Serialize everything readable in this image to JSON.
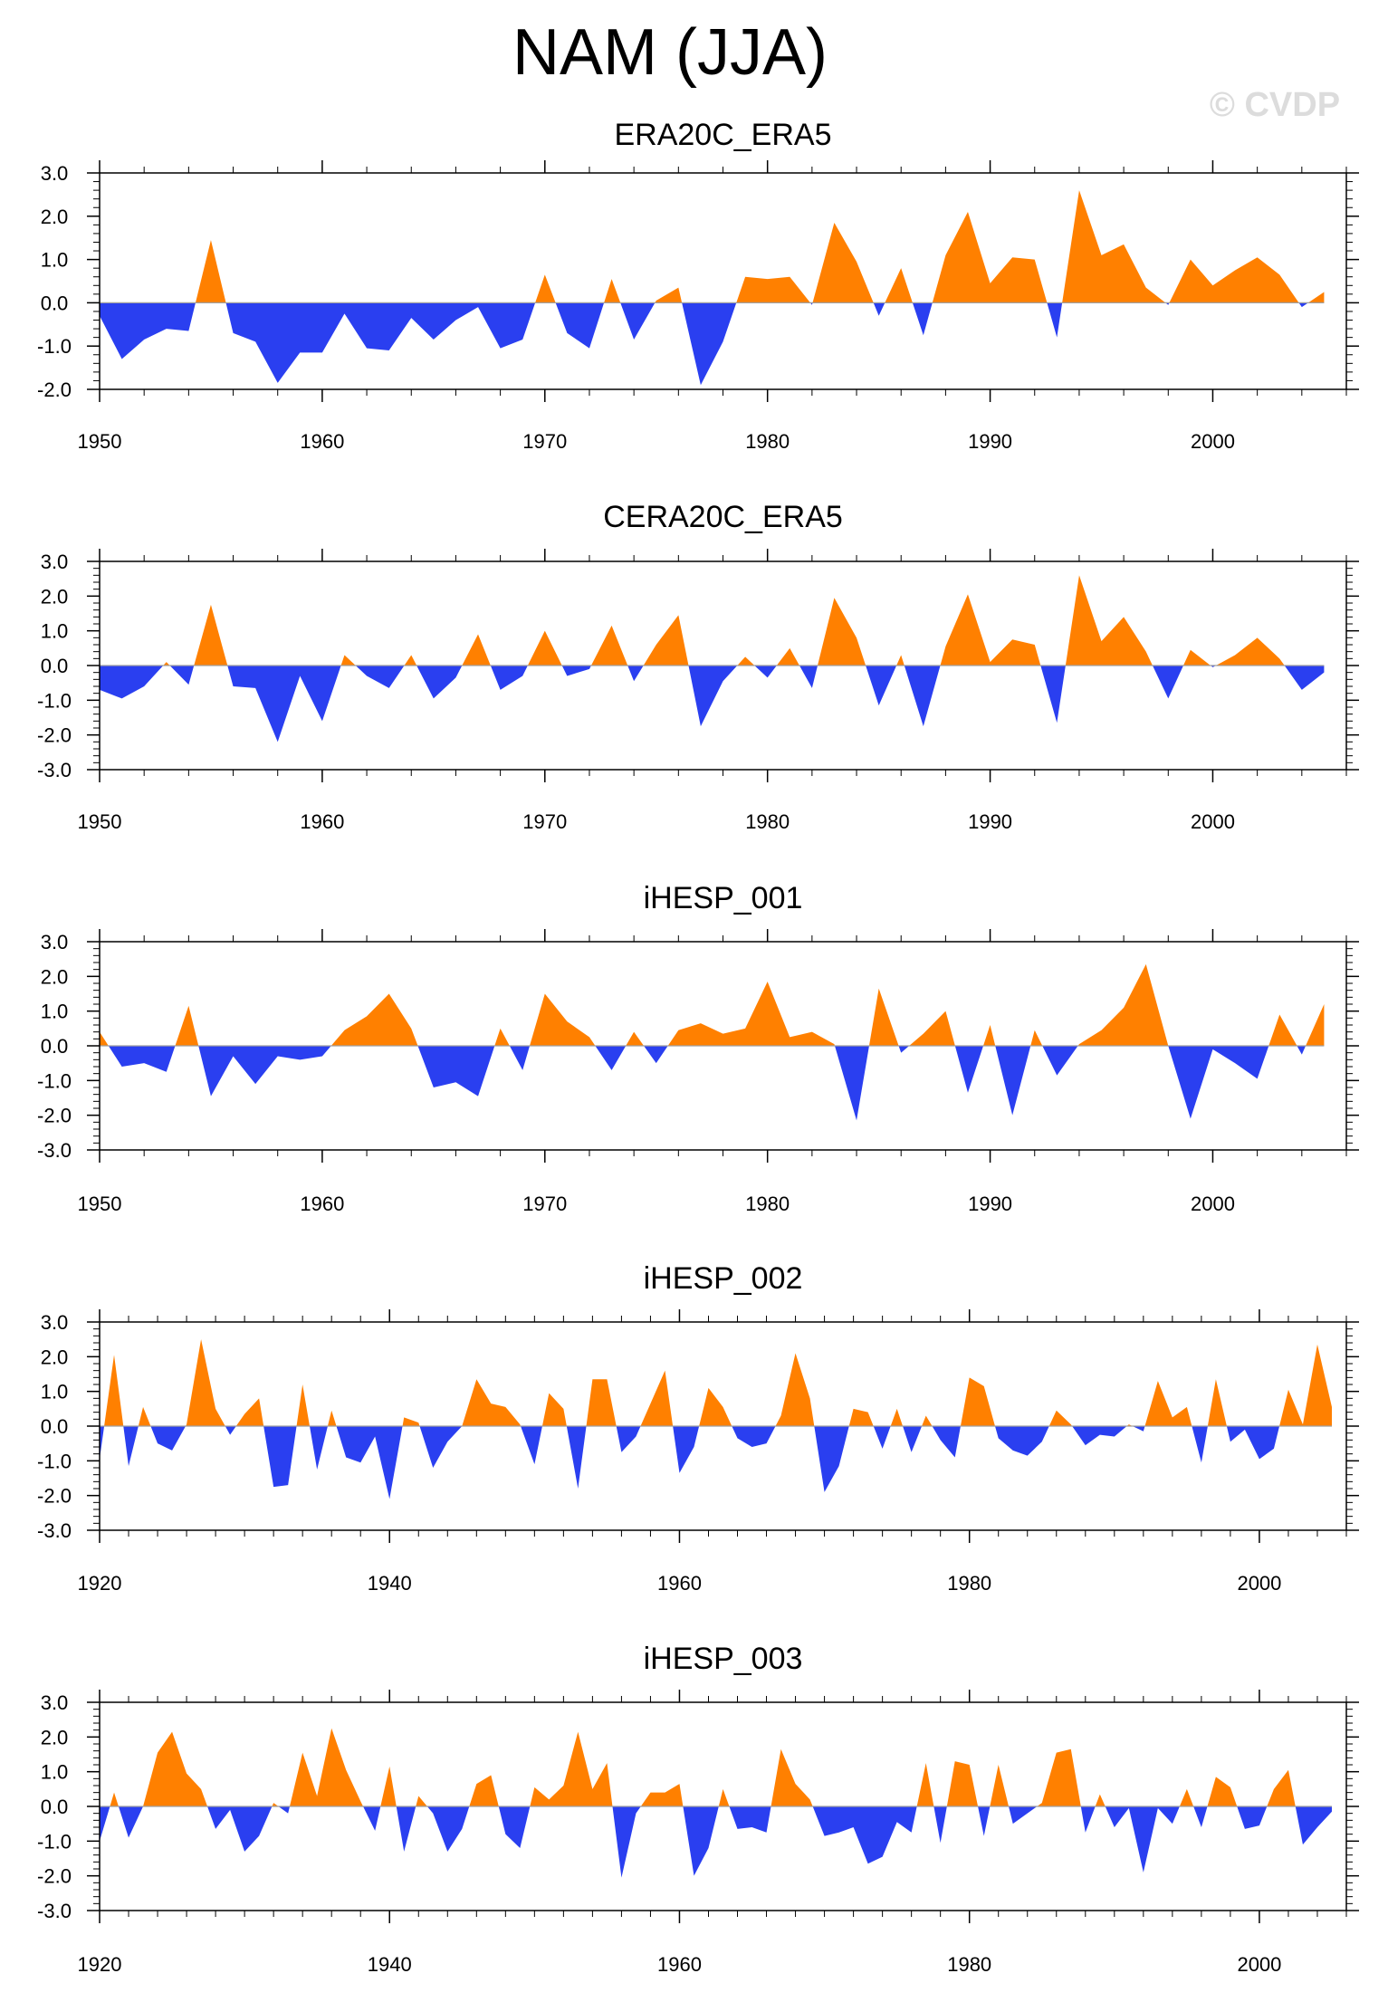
{
  "figure": {
    "title": "NAM (JJA)",
    "watermark": "© CVDP",
    "colors": {
      "positive": "#ff8000",
      "negative": "#2a3ff0",
      "axis": "#000000",
      "zero_line": "#a0a0a0"
    }
  },
  "chart_data": [
    {
      "type": "area",
      "title": "ERA20C_ERA5",
      "x_start": 1950,
      "ylim": [
        -2.0,
        3.0
      ],
      "xlim": [
        1950,
        2006
      ],
      "yticks": [
        3.0,
        2.0,
        1.0,
        0.0,
        -1.0,
        -2.0
      ],
      "ytick_labels": [
        "3.0",
        "2.0",
        "1.0",
        "0.0",
        "-1.0",
        "-2.0"
      ],
      "xticks": [
        1950,
        1960,
        1970,
        1980,
        1990,
        2000
      ],
      "xtick_labels": [
        "1950",
        "1960",
        "1970",
        "1980",
        "1990",
        "2000"
      ],
      "values": [
        -0.3,
        -1.3,
        -0.85,
        -0.6,
        -0.65,
        1.45,
        -0.7,
        -0.9,
        -1.85,
        -1.15,
        -1.15,
        -0.25,
        -1.05,
        -1.1,
        -0.35,
        -0.85,
        -0.4,
        -0.1,
        -1.05,
        -0.85,
        0.65,
        -0.7,
        -1.05,
        0.55,
        -0.85,
        0.05,
        0.35,
        -1.9,
        -0.9,
        0.6,
        0.55,
        0.6,
        -0.05,
        1.85,
        0.95,
        -0.3,
        0.8,
        -0.75,
        1.1,
        2.1,
        0.45,
        1.05,
        1.0,
        -0.8,
        2.6,
        1.1,
        1.35,
        0.35,
        -0.05,
        1.0,
        0.4,
        0.75,
        1.05,
        0.65,
        -0.1,
        0.25
      ]
    },
    {
      "type": "area",
      "title": "CERA20C_ERA5",
      "x_start": 1950,
      "ylim": [
        -3.0,
        3.0
      ],
      "xlim": [
        1950,
        2006
      ],
      "yticks": [
        3.0,
        2.0,
        1.0,
        0.0,
        -1.0,
        -2.0,
        -3.0
      ],
      "ytick_labels": [
        "3.0",
        "2.0",
        "1.0",
        "0.0",
        "-1.0",
        "-2.0",
        "-3.0"
      ],
      "xticks": [
        1950,
        1960,
        1970,
        1980,
        1990,
        2000
      ],
      "xtick_labels": [
        "1950",
        "1960",
        "1970",
        "1980",
        "1990",
        "2000"
      ],
      "values": [
        -0.7,
        -0.95,
        -0.6,
        0.1,
        -0.55,
        1.75,
        -0.6,
        -0.65,
        -2.2,
        -0.3,
        -1.6,
        0.3,
        -0.3,
        -0.65,
        0.3,
        -0.95,
        -0.35,
        0.9,
        -0.7,
        -0.3,
        1.0,
        -0.3,
        -0.1,
        1.15,
        -0.45,
        0.6,
        1.45,
        -1.75,
        -0.45,
        0.25,
        -0.35,
        0.5,
        -0.65,
        1.95,
        0.8,
        -1.15,
        0.3,
        -1.75,
        0.55,
        2.05,
        0.1,
        0.75,
        0.6,
        -1.65,
        2.6,
        0.7,
        1.4,
        0.4,
        -0.95,
        0.45,
        -0.05,
        0.3,
        0.8,
        0.2,
        -0.7,
        -0.2
      ]
    },
    {
      "type": "area",
      "title": "iHESP_001",
      "x_start": 1950,
      "ylim": [
        -3.0,
        3.0
      ],
      "xlim": [
        1950,
        2006
      ],
      "yticks": [
        3.0,
        2.0,
        1.0,
        0.0,
        -1.0,
        -2.0,
        -3.0
      ],
      "ytick_labels": [
        "3.0",
        "2.0",
        "1.0",
        "0.0",
        "-1.0",
        "-2.0",
        "-3.0"
      ],
      "xticks": [
        1950,
        1960,
        1970,
        1980,
        1990,
        2000
      ],
      "xtick_labels": [
        "1950",
        "1960",
        "1970",
        "1980",
        "1990",
        "2000"
      ],
      "values": [
        0.4,
        -0.6,
        -0.5,
        -0.75,
        1.15,
        -1.45,
        -0.3,
        -1.1,
        -0.3,
        -0.4,
        -0.3,
        0.45,
        0.85,
        1.5,
        0.5,
        -1.2,
        -1.05,
        -1.45,
        0.5,
        -0.7,
        1.5,
        0.7,
        0.25,
        -0.7,
        0.4,
        -0.5,
        0.45,
        0.65,
        0.35,
        0.5,
        1.85,
        0.25,
        0.4,
        0.05,
        -2.15,
        1.65,
        -0.2,
        0.35,
        1.0,
        -1.35,
        0.6,
        -2.0,
        0.45,
        -0.85,
        0.05,
        0.45,
        1.1,
        2.35,
        0.0,
        -2.1,
        -0.1,
        -0.5,
        -0.95,
        0.9,
        -0.25,
        1.2
      ]
    },
    {
      "type": "area",
      "title": "iHESP_002",
      "x_start": 1920,
      "ylim": [
        -3.0,
        3.0
      ],
      "xlim": [
        1920,
        2006
      ],
      "yticks": [
        3.0,
        2.0,
        1.0,
        0.0,
        -1.0,
        -2.0,
        -3.0
      ],
      "ytick_labels": [
        "3.0",
        "2.0",
        "1.0",
        "0.0",
        "-1.0",
        "-2.0",
        "-3.0"
      ],
      "xticks": [
        1920,
        1940,
        1960,
        1980,
        2000
      ],
      "xtick_labels": [
        "1920",
        "1940",
        "1960",
        "1980",
        "2000"
      ],
      "values": [
        -0.95,
        2.05,
        -1.15,
        0.55,
        -0.5,
        -0.7,
        0.05,
        2.5,
        0.5,
        -0.25,
        0.35,
        0.8,
        -1.75,
        -1.7,
        1.2,
        -1.25,
        0.45,
        -0.9,
        -1.05,
        -0.3,
        -2.1,
        0.25,
        0.1,
        -1.2,
        -0.45,
        0.0,
        1.35,
        0.65,
        0.55,
        0.05,
        -1.1,
        0.95,
        0.5,
        -1.8,
        1.35,
        1.35,
        -0.75,
        -0.3,
        0.65,
        1.6,
        -1.35,
        -0.6,
        1.1,
        0.55,
        -0.35,
        -0.6,
        -0.5,
        0.3,
        2.1,
        0.8,
        -1.9,
        -1.15,
        0.5,
        0.4,
        -0.65,
        0.5,
        -0.75,
        0.3,
        -0.4,
        -0.9,
        1.4,
        1.15,
        -0.35,
        -0.7,
        -0.85,
        -0.45,
        0.45,
        0.05,
        -0.55,
        -0.25,
        -0.3,
        0.05,
        -0.15,
        1.3,
        0.25,
        0.55,
        -1.05,
        1.35,
        -0.45,
        -0.1,
        -0.95,
        -0.65,
        1.05,
        0.05,
        2.35,
        0.55
      ]
    },
    {
      "type": "area",
      "title": "iHESP_003",
      "x_start": 1920,
      "ylim": [
        -3.0,
        3.0
      ],
      "xlim": [
        1920,
        2006
      ],
      "yticks": [
        3.0,
        2.0,
        1.0,
        0.0,
        -1.0,
        -2.0,
        -3.0
      ],
      "ytick_labels": [
        "3.0",
        "2.0",
        "1.0",
        "0.0",
        "-1.0",
        "-2.0",
        "-3.0"
      ],
      "xticks": [
        1920,
        1940,
        1960,
        1980,
        2000
      ],
      "xtick_labels": [
        "1920",
        "1940",
        "1960",
        "1980",
        "2000"
      ],
      "values": [
        -1.0,
        0.4,
        -0.9,
        0.0,
        1.55,
        2.15,
        0.95,
        0.5,
        -0.65,
        -0.1,
        -1.3,
        -0.85,
        0.1,
        -0.2,
        1.55,
        0.3,
        2.25,
        1.05,
        0.15,
        -0.7,
        1.15,
        -1.3,
        0.3,
        -0.2,
        -1.3,
        -0.65,
        0.65,
        0.9,
        -0.8,
        -1.2,
        0.55,
        0.2,
        0.6,
        2.15,
        0.5,
        1.25,
        -2.05,
        -0.2,
        0.4,
        0.4,
        0.65,
        -2.0,
        -1.2,
        0.5,
        -0.65,
        -0.6,
        -0.75,
        1.65,
        0.65,
        0.2,
        -0.85,
        -0.75,
        -0.6,
        -1.65,
        -1.45,
        -0.45,
        -0.75,
        1.25,
        -1.05,
        1.3,
        1.2,
        -0.85,
        1.2,
        -0.5,
        -0.2,
        0.1,
        1.55,
        1.65,
        -0.75,
        0.35,
        -0.6,
        -0.05,
        -1.9,
        -0.05,
        -0.5,
        0.5,
        -0.6,
        0.85,
        0.55,
        -0.65,
        -0.55,
        0.5,
        1.05,
        -1.1,
        -0.6,
        -0.15
      ]
    }
  ]
}
